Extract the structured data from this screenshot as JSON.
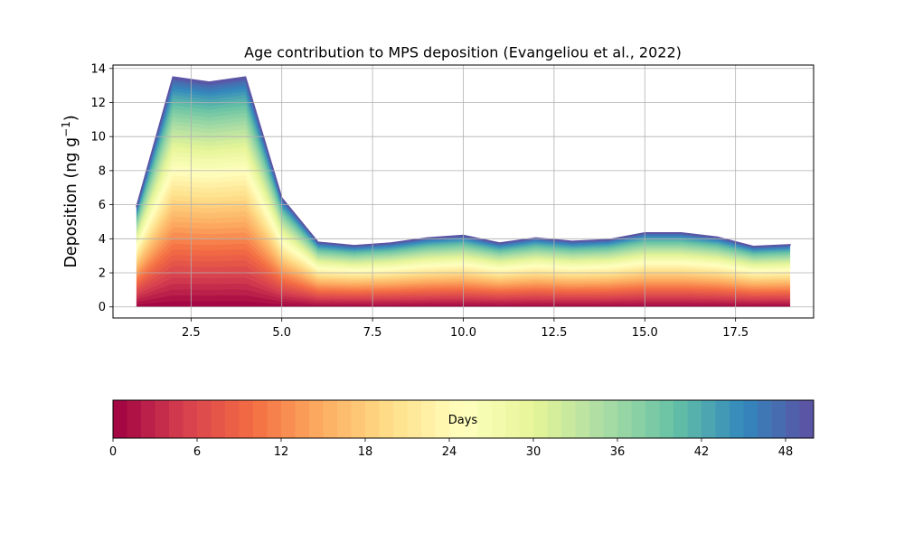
{
  "chart_data": {
    "type": "area",
    "title": "Age contribution to MPS deposition (Evangeliou et al., 2022)",
    "xlabel": "",
    "ylabel": "Deposition (ng g",
    "ylabel_superscript": "−1",
    "ylabel_close": ")",
    "xlim": [
      0.35,
      19.65
    ],
    "ylim": [
      -0.65,
      14.2
    ],
    "x_ticks": [
      2.5,
      5.0,
      7.5,
      10.0,
      12.5,
      15.0,
      17.5
    ],
    "x_tick_labels": [
      "2.5",
      "5.0",
      "7.5",
      "10.0",
      "12.5",
      "15.0",
      "17.5"
    ],
    "y_ticks": [
      0,
      2,
      4,
      6,
      8,
      10,
      12,
      14
    ],
    "y_tick_labels": [
      "0",
      "2",
      "4",
      "6",
      "8",
      "10",
      "12",
      "14"
    ],
    "grid": true,
    "x": [
      1,
      2,
      3,
      4,
      5,
      6,
      7,
      8,
      9,
      10,
      11,
      12,
      13,
      14,
      15,
      16,
      17,
      18,
      19
    ],
    "totals": [
      5.9,
      13.5,
      13.2,
      13.5,
      6.4,
      3.8,
      3.6,
      3.75,
      4.05,
      4.2,
      3.75,
      4.05,
      3.85,
      3.95,
      4.35,
      4.35,
      4.1,
      3.55,
      3.65
    ],
    "layers": 50,
    "colormap": "Spectral",
    "colorbar": {
      "label": "Days",
      "range": [
        0,
        50
      ],
      "ticks": [
        0,
        6,
        12,
        18,
        24,
        30,
        36,
        42,
        48
      ],
      "tick_labels": [
        "0",
        "6",
        "12",
        "18",
        "24",
        "30",
        "36",
        "42",
        "48"
      ]
    },
    "colors": [
      "#9e0142",
      "#d53e4f",
      "#f46d43",
      "#fdae61",
      "#fee08b",
      "#ffffbf",
      "#e6f598",
      "#abdda4",
      "#66c2a5",
      "#3288bd",
      "#5e4fa2"
    ]
  }
}
